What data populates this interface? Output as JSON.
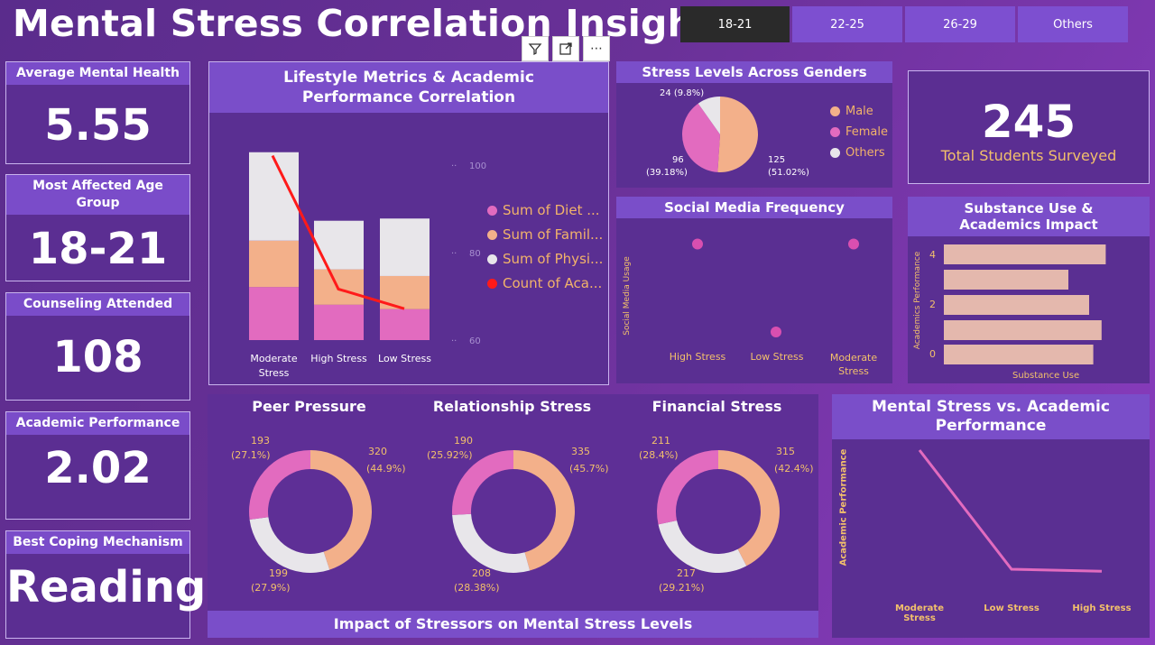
{
  "title": "Mental Stress Correlation Insights",
  "slicers": [
    "18-21",
    "22-25",
    "26-29",
    "Others"
  ],
  "toolbar": {
    "filter_icon": "filter-icon",
    "focus_icon": "focus-mode-icon",
    "more_icon": "more-options-icon",
    "more_label": "⋯"
  },
  "kpis": {
    "avg_mental_health": {
      "label": "Average Mental Health",
      "value": "5.55"
    },
    "age_group": {
      "label": "Most Affected Age Group",
      "value": "18-21"
    },
    "counseling": {
      "label": "Counseling Attended",
      "value": "108"
    },
    "academic": {
      "label": "Academic Performance",
      "value": "2.02"
    },
    "coping": {
      "label": "Best Coping Mechanism",
      "value": "Reading"
    }
  },
  "total": {
    "value": "245",
    "label": "Total Students Surveyed"
  },
  "colors": {
    "pink": "#e26bbf",
    "peach": "#f3b08a",
    "lightgray": "#e8e6ea",
    "red": "#ff1a1a",
    "gold": "#f2c06b",
    "bar": "#e4b8ad"
  },
  "lifestyle": {
    "title": "Lifestyle Metrics & Academic Performance Correlation",
    "categories": [
      "Moderate Stress",
      "High Stress",
      "Low Stress"
    ],
    "y_ticks": [
      "100",
      "80",
      "60"
    ],
    "legend": [
      "Sum of Diet ...",
      "Sum of Famil...",
      "Sum of Physi...",
      "Count of Aca..."
    ]
  },
  "gender": {
    "title": "Stress Levels Across Genders",
    "legend": [
      "Male",
      "Female",
      "Others"
    ],
    "labels": {
      "male": "125",
      "male_pct": "(51.02%)",
      "female": "96",
      "female_pct": "(39.18%)",
      "others": "24 (9.8%)"
    }
  },
  "social": {
    "title": "Social Media Frequency",
    "ylabel": "Social Media Usage",
    "categories": [
      "High Stress",
      "Low Stress",
      "Moderate Stress"
    ]
  },
  "substance": {
    "title": "Substance Use & Academics Impact",
    "ylabel": "Academics Performance",
    "xlabel": "Substance Use",
    "y_ticks": [
      "4",
      "2",
      "0"
    ]
  },
  "donuts_footer": "Impact of Stressors on Mental Stress Levels",
  "donuts": [
    {
      "title": "Peer Pressure",
      "l1": "193",
      "p1": "(27.1%)",
      "l2": "320",
      "p2": "(44.9%)",
      "l3": "199",
      "p3": "(27.9%)"
    },
    {
      "title": "Relationship Stress",
      "l1": "190",
      "p1": "(25.92%)",
      "l2": "335",
      "p2": "(45.7%)",
      "l3": "208",
      "p3": "(28.38%)"
    },
    {
      "title": "Financial Stress",
      "l1": "211",
      "p1": "(28.4%)",
      "l2": "315",
      "p2": "(42.4%)",
      "l3": "217",
      "p3": "(29.21%)"
    }
  ],
  "stress_line": {
    "title": "Mental Stress vs. Academic Performance",
    "ylabel": "Academic Performance",
    "categories": [
      "Moderate Stress",
      "Low Stress",
      "High Stress"
    ]
  },
  "chart_data": [
    {
      "type": "bar",
      "title": "Lifestyle Metrics & Academic Performance Correlation",
      "categories": [
        "Moderate Stress",
        "High Stress",
        "Low Stress"
      ],
      "series": [
        {
          "name": "Sum of Diet ...",
          "values": [
            24,
            16,
            14
          ]
        },
        {
          "name": "Sum of Famil...",
          "values": [
            21,
            16,
            15
          ]
        },
        {
          "name": "Sum of Physi...",
          "values": [
            40,
            22,
            26
          ]
        },
        {
          "name": "Count of Aca...",
          "values": [
            107,
            73,
            68
          ]
        }
      ]
    },
    {
      "type": "pie",
      "title": "Stress Levels Across Genders",
      "categories": [
        "Male",
        "Female",
        "Others"
      ],
      "values": [
        125,
        96,
        24
      ]
    },
    {
      "type": "scatter",
      "title": "Social Media Frequency",
      "categories": [
        "High Stress",
        "Low Stress",
        "Moderate Stress"
      ],
      "values": [
        3.0,
        2.5,
        3.0
      ]
    },
    {
      "type": "bar",
      "title": "Substance Use & Academics Impact",
      "x": [
        0,
        1,
        2,
        3,
        4
      ],
      "values": [
        3.9,
        3.0,
        3.5,
        3.8,
        3.6
      ],
      "xlabel": "Substance Use",
      "ylabel": "Academics Performance"
    },
    {
      "type": "pie",
      "title": "Peer Pressure",
      "values": [
        320,
        199,
        193
      ]
    },
    {
      "type": "pie",
      "title": "Relationship Stress",
      "values": [
        335,
        208,
        190
      ]
    },
    {
      "type": "pie",
      "title": "Financial Stress",
      "values": [
        315,
        217,
        211
      ]
    },
    {
      "type": "line",
      "title": "Mental Stress vs. Academic Performance",
      "categories": [
        "Moderate Stress",
        "Low Stress",
        "High Stress"
      ],
      "values": [
        2.9,
        1.7,
        1.68
      ]
    }
  ]
}
